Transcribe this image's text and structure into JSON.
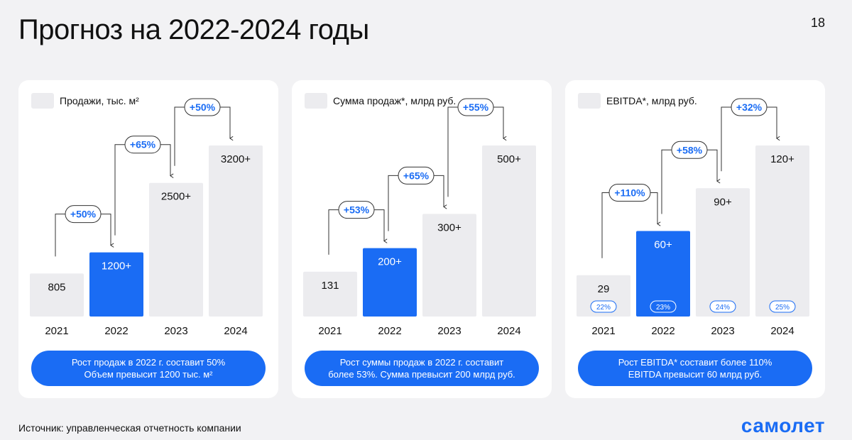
{
  "page": {
    "title": "Прогноз на 2022-2024 годы",
    "number": "18",
    "source": "Источник: управленческая отчетность компании",
    "logo": "самолет"
  },
  "colors": {
    "accent": "#1a6cf4",
    "bar_default": "#ececef",
    "background": "#f2f2f4",
    "card": "#ffffff"
  },
  "chart_data": [
    {
      "type": "bar",
      "title": "Продажи, тыс. м²",
      "categories": [
        "2021",
        "2022",
        "2023",
        "2024"
      ],
      "values": [
        805,
        1200,
        2500,
        3200
      ],
      "value_labels": [
        "805",
        "1200+",
        "2500+",
        "3200+"
      ],
      "highlight_index": 1,
      "growth_labels": [
        "+50%",
        "+65%",
        "+50%"
      ],
      "ylim": [
        0,
        3200
      ],
      "summary": [
        "Рост продаж в 2022 г. составит 50%",
        "Объем превысит 1200 тыс. м²"
      ]
    },
    {
      "type": "bar",
      "title": "Сумма продаж*, млрд руб.",
      "categories": [
        "2021",
        "2022",
        "2023",
        "2024"
      ],
      "values": [
        131,
        200,
        300,
        500
      ],
      "value_labels": [
        "131",
        "200+",
        "300+",
        "500+"
      ],
      "highlight_index": 1,
      "growth_labels": [
        "+53%",
        "+65%",
        "+55%"
      ],
      "ylim": [
        0,
        500
      ],
      "summary": [
        "Рост суммы продаж в 2022 г. составит",
        "более 53%. Сумма превысит 200 млрд руб."
      ]
    },
    {
      "type": "bar",
      "title": "EBITDA*, млрд руб.",
      "categories": [
        "2021",
        "2022",
        "2023",
        "2024"
      ],
      "values": [
        29,
        60,
        90,
        120
      ],
      "value_labels": [
        "29",
        "60+",
        "90+",
        "120+"
      ],
      "margin_labels": [
        "22%",
        "23%",
        "24%",
        "25%"
      ],
      "highlight_index": 1,
      "growth_labels": [
        "+110%",
        "+58%",
        "+32%"
      ],
      "ylim": [
        0,
        120
      ],
      "summary": [
        "Рост EBITDA* составит более 110%",
        "EBITDA превысит 60 млрд руб."
      ]
    }
  ]
}
